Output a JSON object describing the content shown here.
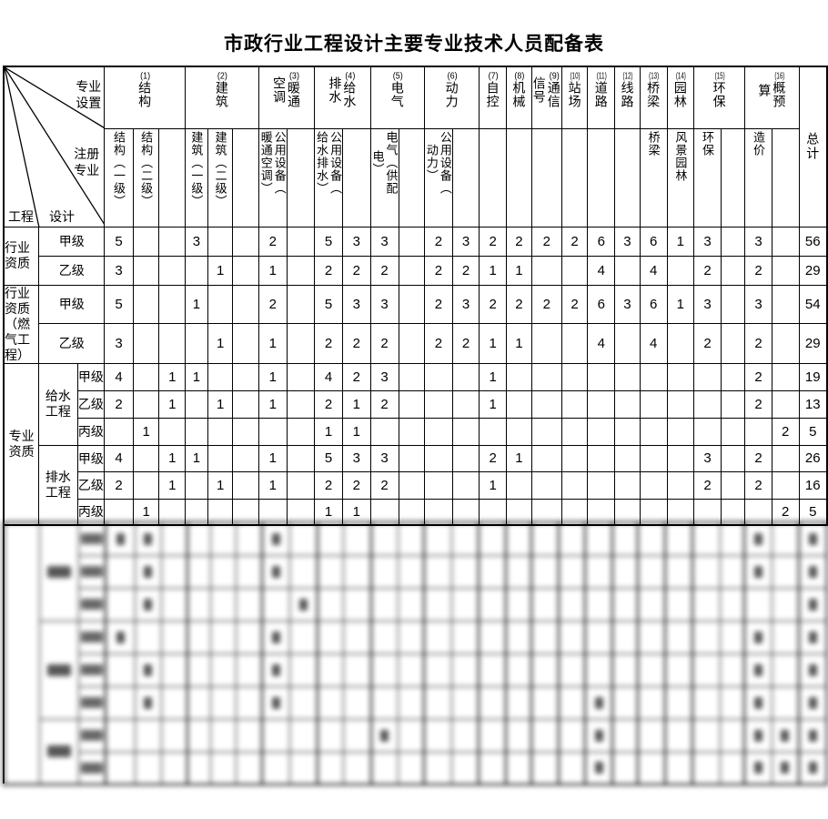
{
  "title": "市政行业工程设计主要专业技术人员配备表",
  "corner": {
    "top": "专业\n设置",
    "middle": "注册\n专业",
    "bottom_right": "设计",
    "bottom_left": "工程"
  },
  "total_label": "总计",
  "column_groups": [
    {
      "num": "(1)",
      "label": "结构",
      "span": 3
    },
    {
      "num": "(2)",
      "label": "建筑",
      "span": 3
    },
    {
      "num": "(3)",
      "label": "暖通\n空调",
      "span": 2
    },
    {
      "num": "(4)",
      "label": "给水\n排水",
      "span": 2
    },
    {
      "num": "(5)",
      "label": "电气",
      "span": 2
    },
    {
      "num": "(6)",
      "label": "动力",
      "span": 2
    },
    {
      "num": "(7)",
      "label": "自控",
      "span": 1
    },
    {
      "num": "(8)",
      "label": "机械",
      "span": 1
    },
    {
      "num": "(9)",
      "label": "通信\n信号",
      "span": 1
    },
    {
      "num": "(10)",
      "label": "站场",
      "span": 1
    },
    {
      "num": "(11)",
      "label": "道路",
      "span": 1
    },
    {
      "num": "(12)",
      "label": "线路",
      "span": 1
    },
    {
      "num": "(13)",
      "label": "桥梁",
      "span": 1
    },
    {
      "num": "(14)",
      "label": "园林",
      "span": 1
    },
    {
      "num": "(15)",
      "label": "环保",
      "span": 2
    },
    {
      "num": "(16)",
      "label": "概预\n算",
      "span": 2
    }
  ],
  "sub_headers": [
    "结构（一级）",
    "结构（二级）",
    "",
    "建筑（一级）",
    "建筑（二级）",
    "",
    "公用设备（\n暖通空调）",
    "",
    "公用设备（\n给水排水）",
    "",
    "电气（供配\n电）",
    "",
    "公用设备（\n动力）",
    "",
    "",
    "",
    "",
    "",
    "",
    "",
    "桥梁",
    "风景园林",
    "环保",
    "",
    "造价",
    ""
  ],
  "row_groups": [
    {
      "label": "行业资质",
      "rows": [
        {
          "level": "甲级",
          "cells": [
            "5",
            "",
            "",
            "3",
            "",
            "",
            "2",
            "",
            "5",
            "3",
            "3",
            "",
            "2",
            "3",
            "2",
            "2",
            "2",
            "2",
            "6",
            "3",
            "6",
            "1",
            "3",
            "",
            "3",
            "",
            "56"
          ]
        },
        {
          "level": "乙级",
          "cells": [
            "3",
            "",
            "",
            "",
            "1",
            "",
            "1",
            "",
            "2",
            "2",
            "2",
            "",
            "2",
            "2",
            "1",
            "1",
            "",
            "",
            "4",
            "",
            "4",
            "",
            "2",
            "",
            "2",
            "",
            "29"
          ]
        }
      ]
    },
    {
      "label": "行业资质（燃气工程）",
      "rows": [
        {
          "level": "甲级",
          "cells": [
            "5",
            "",
            "",
            "1",
            "",
            "",
            "2",
            "",
            "5",
            "3",
            "3",
            "",
            "2",
            "3",
            "2",
            "2",
            "2",
            "2",
            "6",
            "3",
            "6",
            "1",
            "3",
            "",
            "3",
            "",
            "54"
          ]
        },
        {
          "level": "乙级",
          "cells": [
            "3",
            "",
            "",
            "",
            "1",
            "",
            "1",
            "",
            "2",
            "2",
            "2",
            "",
            "2",
            "2",
            "1",
            "1",
            "",
            "",
            "4",
            "",
            "4",
            "",
            "2",
            "",
            "2",
            "",
            "29"
          ]
        }
      ]
    },
    {
      "label": "专业资质",
      "subgroups": [
        {
          "label": "给水工程",
          "rows": [
            {
              "level": "甲级",
              "cells": [
                "4",
                "",
                "1",
                "1",
                "",
                "",
                "1",
                "",
                "4",
                "2",
                "3",
                "",
                "",
                "",
                "1",
                "",
                "",
                "",
                "",
                "",
                "",
                "",
                "",
                "",
                "2",
                "",
                "19"
              ]
            },
            {
              "level": "乙级",
              "cells": [
                "2",
                "",
                "1",
                "",
                "1",
                "",
                "1",
                "",
                "2",
                "1",
                "2",
                "",
                "",
                "",
                "1",
                "",
                "",
                "",
                "",
                "",
                "",
                "",
                "",
                "",
                "2",
                "",
                "13"
              ]
            },
            {
              "level": "丙级",
              "cells": [
                "",
                "1",
                "",
                "",
                "",
                "",
                "",
                "",
                "1",
                "1",
                "",
                "",
                "",
                "",
                "",
                "",
                "",
                "",
                "",
                "",
                "",
                "",
                "",
                "",
                "",
                "2",
                "5"
              ]
            }
          ]
        },
        {
          "label": "排水工程",
          "rows": [
            {
              "level": "甲级",
              "cells": [
                "4",
                "",
                "1",
                "1",
                "",
                "",
                "1",
                "",
                "5",
                "3",
                "3",
                "",
                "",
                "",
                "2",
                "1",
                "",
                "",
                "",
                "",
                "",
                "",
                "3",
                "",
                "2",
                "",
                "26"
              ]
            },
            {
              "level": "乙级",
              "cells": [
                "2",
                "",
                "1",
                "",
                "1",
                "",
                "1",
                "",
                "2",
                "2",
                "2",
                "",
                "",
                "",
                "1",
                "",
                "",
                "",
                "",
                "",
                "",
                "",
                "2",
                "",
                "2",
                "",
                "16"
              ]
            },
            {
              "level": "丙级",
              "cells": [
                "",
                "1",
                "",
                "",
                "",
                "",
                "",
                "",
                "1",
                "1",
                "",
                "",
                "",
                "",
                "",
                "",
                "",
                "",
                "",
                "",
                "",
                "",
                "",
                "",
                "",
                "2",
                "5"
              ]
            }
          ]
        }
      ]
    }
  ],
  "blur_section": {
    "note": "lower portion of scanned table is blurred beyond legibility",
    "rows": 8,
    "group_spans": [
      3,
      3,
      2
    ],
    "digit_cells": [
      [
        0,
        1
      ],
      [
        0,
        2
      ],
      [
        0,
        7
      ],
      [
        0,
        25
      ],
      [
        0,
        27
      ],
      [
        1,
        2
      ],
      [
        1,
        7
      ],
      [
        1,
        25
      ],
      [
        1,
        27
      ],
      [
        2,
        2
      ],
      [
        2,
        8
      ],
      [
        2,
        27
      ],
      [
        3,
        1
      ],
      [
        3,
        7
      ],
      [
        3,
        25
      ],
      [
        3,
        27
      ],
      [
        4,
        2
      ],
      [
        4,
        7
      ],
      [
        4,
        25
      ],
      [
        4,
        27
      ],
      [
        5,
        2
      ],
      [
        5,
        7
      ],
      [
        5,
        19
      ],
      [
        5,
        25
      ],
      [
        5,
        27
      ],
      [
        6,
        11
      ],
      [
        6,
        19
      ],
      [
        6,
        25
      ],
      [
        6,
        26
      ],
      [
        6,
        27
      ],
      [
        7,
        19
      ],
      [
        7,
        25
      ],
      [
        7,
        26
      ],
      [
        7,
        27
      ]
    ]
  }
}
